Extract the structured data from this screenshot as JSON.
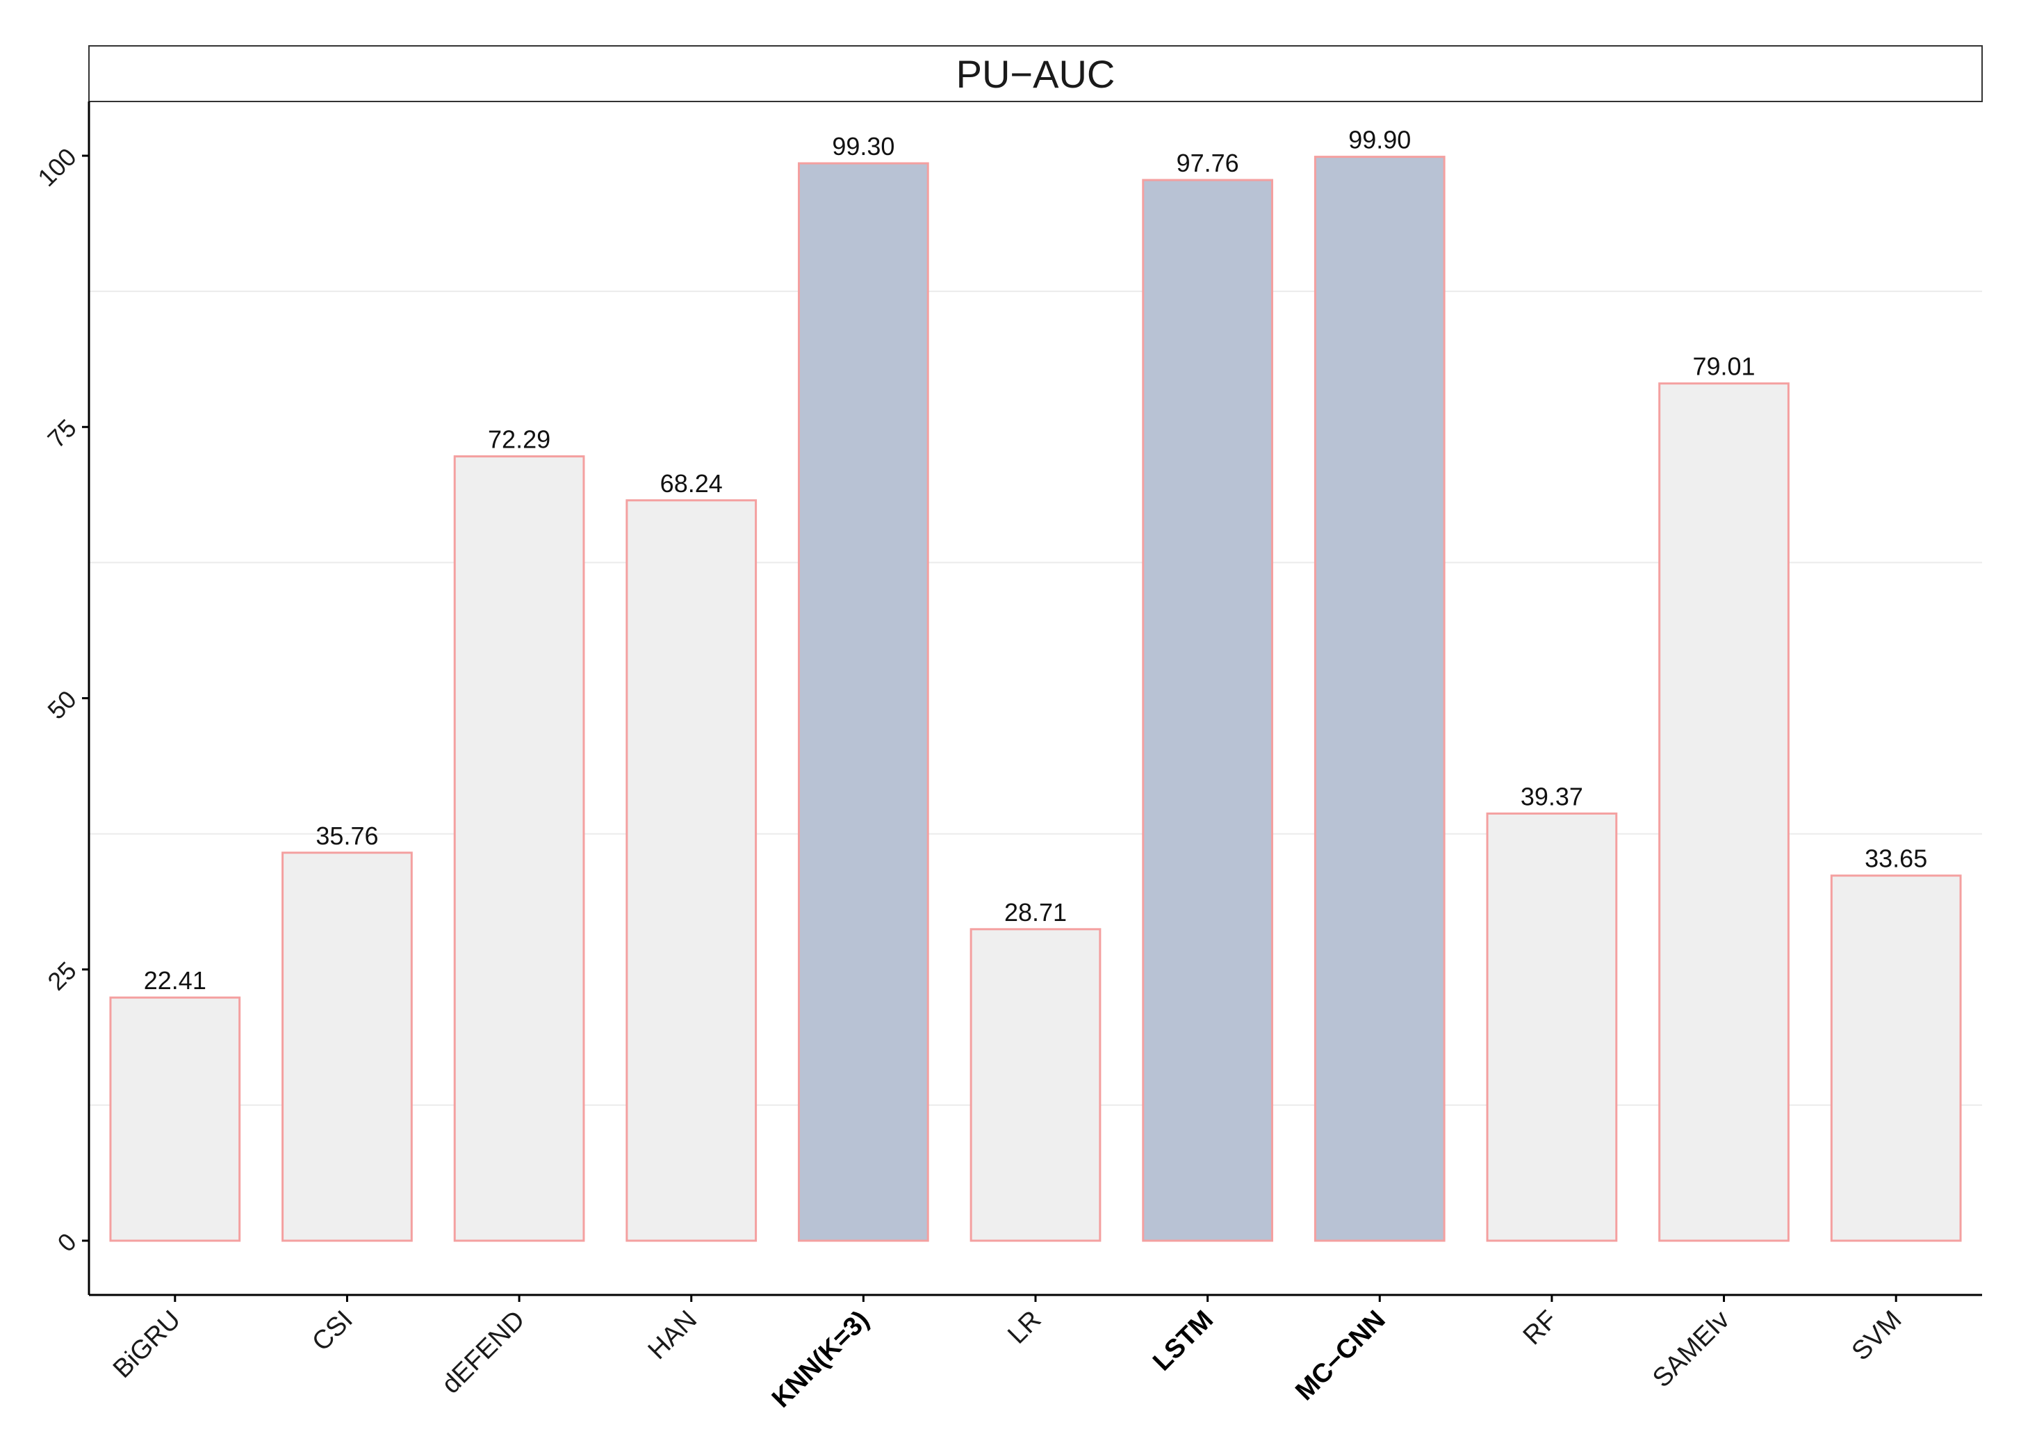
{
  "chart_data": {
    "type": "bar",
    "title": "PU−AUC",
    "xlabel": "",
    "ylabel": "",
    "ylim": [
      -5,
      105
    ],
    "yticks": [
      0,
      25,
      50,
      75,
      100
    ],
    "grid": "horizontal minor lines",
    "categories": [
      "BiGRU",
      "CSI",
      "dEFEND",
      "HAN",
      "KNN(K=3)",
      "LR",
      "LSTM",
      "MC−CNN",
      "RF",
      "SAMEIv",
      "SVM"
    ],
    "values": [
      22.41,
      35.76,
      72.29,
      68.24,
      99.3,
      28.71,
      97.76,
      99.9,
      39.37,
      79.01,
      33.65
    ],
    "value_labels": [
      "22.41",
      "35.76",
      "72.29",
      "68.24",
      "99.30",
      "28.71",
      "97.76",
      "99.90",
      "39.37",
      "79.01",
      "33.65"
    ],
    "highlighted": [
      "KNN(K=3)",
      "LSTM",
      "MC−CNN"
    ],
    "colors": {
      "bar_fill": "#efefef",
      "bar_fill_highlight": "#b8c2d4",
      "bar_stroke": "#f4a0a0",
      "grid": "#ebebeb",
      "axis": "#000000"
    }
  }
}
